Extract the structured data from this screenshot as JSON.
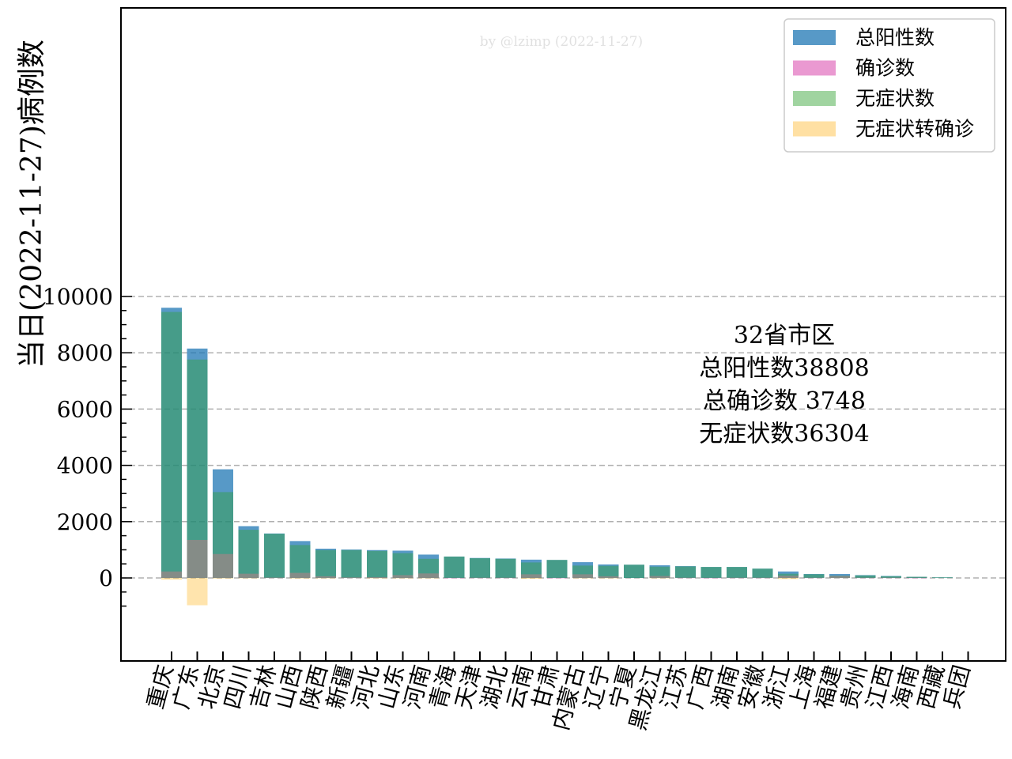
{
  "chart_data": {
    "type": "bar",
    "ylabel": "当日(2022-11-27)病例数",
    "watermark": "by @lzimp (2022-11-27)",
    "ylim": [
      -1480,
      10150
    ],
    "yticks": [
      0,
      2000,
      4000,
      6000,
      8000,
      10000
    ],
    "grid": "y-dashed",
    "legend_position": "top-right",
    "categories": [
      "重庆",
      "广东",
      "北京",
      "四川",
      "吉林",
      "山西",
      "陕西",
      "新疆",
      "河北",
      "山东",
      "河南",
      "青海",
      "天津",
      "湖北",
      "云南",
      "甘肃",
      "内蒙古",
      "辽宁",
      "宁夏",
      "黑龙江",
      "江苏",
      "广西",
      "湖南",
      "安徽",
      "浙江",
      "上海",
      "福建",
      "贵州",
      "江西",
      "海南",
      "西藏",
      "兵团"
    ],
    "series": [
      {
        "name": "总阳性数",
        "color": "#1f77b4",
        "values": [
          9600,
          8150,
          3860,
          1840,
          1580,
          1310,
          1040,
          1010,
          990,
          970,
          830,
          760,
          710,
          690,
          650,
          640,
          560,
          480,
          470,
          450,
          420,
          390,
          390,
          330,
          230,
          140,
          140,
          100,
          70,
          40,
          20,
          0
        ]
      },
      {
        "name": "确诊数",
        "color": "#e377c2",
        "values": [
          230,
          1350,
          850,
          150,
          15,
          180,
          60,
          20,
          30,
          100,
          160,
          5,
          10,
          10,
          130,
          5,
          130,
          60,
          0,
          70,
          10,
          5,
          10,
          10,
          80,
          10,
          70,
          10,
          10,
          5,
          0,
          0
        ]
      },
      {
        "name": "无症状数",
        "color": "#2ca02c",
        "values": [
          9450,
          7760,
          3050,
          1710,
          1570,
          1170,
          990,
          990,
          960,
          880,
          680,
          760,
          700,
          680,
          550,
          640,
          440,
          430,
          470,
          400,
          410,
          390,
          390,
          330,
          150,
          130,
          80,
          90,
          60,
          40,
          20,
          0
        ]
      },
      {
        "name": "无症状转确诊",
        "color": "#ffbb33",
        "values": [
          -60,
          -970,
          -20,
          -10,
          0,
          -20,
          -10,
          0,
          -5,
          -10,
          -10,
          0,
          0,
          0,
          -30,
          0,
          -10,
          -5,
          0,
          -10,
          0,
          0,
          0,
          0,
          -40,
          0,
          0,
          0,
          0,
          0,
          0,
          0
        ]
      }
    ],
    "annotation": {
      "lines": [
        "32省市区",
        "总阳性数38808",
        "总确诊数 3748",
        "无症状数36304"
      ]
    }
  }
}
